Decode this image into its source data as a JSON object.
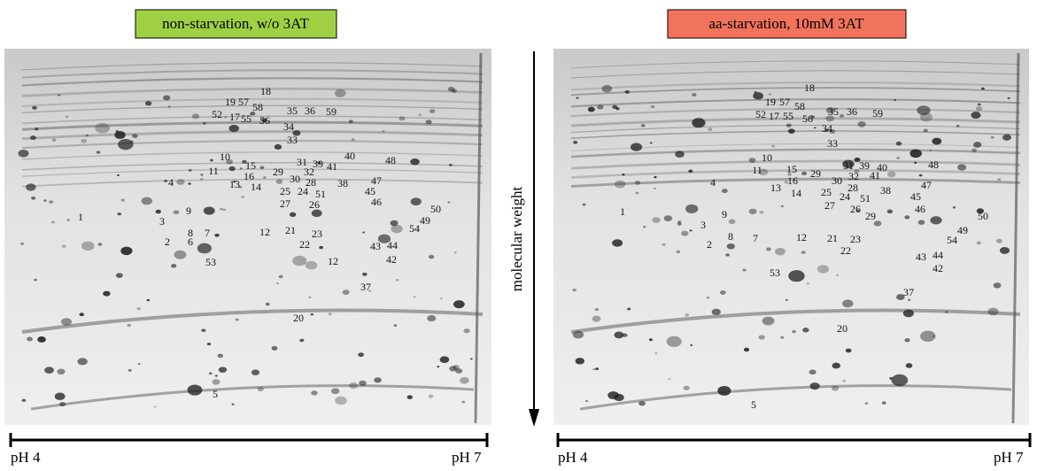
{
  "panels": [
    {
      "title": "non-starvation, w/o 3AT",
      "spots": [
        "18",
        "19",
        "57",
        "58",
        "52",
        "17",
        "55",
        "56",
        "35",
        "36",
        "59",
        "34",
        "33",
        "10",
        "11",
        "15",
        "16",
        "13",
        "14",
        "29",
        "31",
        "39",
        "41",
        "32",
        "30",
        "28",
        "38",
        "40",
        "48",
        "47",
        "45",
        "25",
        "24",
        "51",
        "27",
        "26",
        "46",
        "4",
        "9",
        "3",
        "8",
        "7",
        "6",
        "2",
        "12",
        "21",
        "23",
        "22",
        "50",
        "49",
        "54",
        "43",
        "44",
        "42",
        "12",
        "53",
        "37",
        "20",
        "5",
        "1"
      ],
      "ph_left": "pH 4",
      "ph_right": "pH 7"
    },
    {
      "title": "aa-starvation, 10mM 3AT",
      "spots": [
        "18",
        "19",
        "57",
        "58",
        "52",
        "17",
        "55",
        "56",
        "35",
        "36",
        "59",
        "34",
        "33",
        "10",
        "11",
        "15",
        "16",
        "13",
        "14",
        "29",
        "31",
        "39",
        "40",
        "41",
        "32",
        "30",
        "28",
        "38",
        "48",
        "47",
        "45",
        "46",
        "25",
        "24",
        "51",
        "27",
        "26",
        "29",
        "4",
        "9",
        "3",
        "8",
        "7",
        "2",
        "12",
        "21",
        "23",
        "22",
        "50",
        "49",
        "54",
        "43",
        "44",
        "42",
        "53",
        "37",
        "20",
        "5",
        "1"
      ],
      "ph_left": "pH 4",
      "ph_right": "pH 7"
    }
  ],
  "axis_label": "molecular weight"
}
